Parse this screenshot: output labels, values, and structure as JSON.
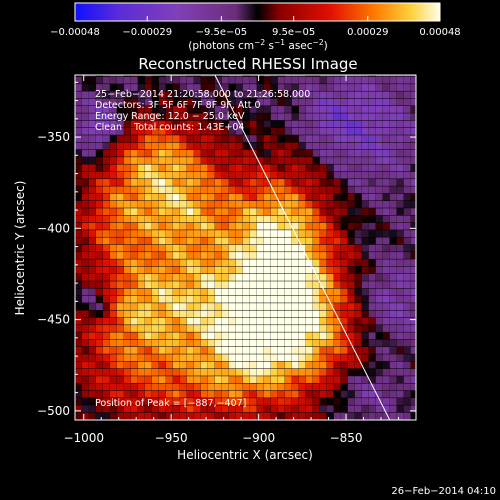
{
  "chart_data": {
    "type": "heatmap",
    "title": "Reconstructed RHESSI Image",
    "xlabel": "Heliocentric X (arcsec)",
    "ylabel": "Heliocentric Y (arcsec)",
    "xlim": [
      -1005,
      -810
    ],
    "ylim": [
      -505,
      -316
    ],
    "xticks": [
      -1000,
      -950,
      -900,
      -850
    ],
    "yticks": [
      -350,
      -400,
      -450,
      -500
    ],
    "colorbar": {
      "ticks": [
        -0.00048,
        -0.00029,
        -9.5e-05,
        9.5e-05,
        0.00029,
        0.00048
      ],
      "tick_labels": [
        "−0.00048",
        "−0.00029",
        "−9.5e−05",
        "9.5e−05",
        "0.00029",
        "0.00048"
      ],
      "range": [
        -0.00048,
        0.00048
      ],
      "units_prefix": "(photons cm",
      "units_exp1": "−2",
      "units_mid": " s",
      "units_exp2": "−1",
      "units_mid2": " asec",
      "units_exp3": "−2",
      "units_suffix": ")"
    },
    "annotations": [
      "25−Feb−2014 21:20:58.000 to 21:26:58.000",
      "Detectors: 3F 5F 6F 7F 8F 9F, Att 0",
      "Energy Range: 12.0 − 25.0 keV",
      "Clean    Total counts: 1.43E+04"
    ],
    "peak_label": "Position of Peak = [−887,−407]",
    "peak": [
      -887,
      -407
    ],
    "limb_line": [
      [
        -925,
        -316
      ],
      [
        -825,
        -505
      ]
    ],
    "blobs": [
      {
        "x": -887,
        "y": -407,
        "sx": 20,
        "sy": 27,
        "a": 1.0
      },
      {
        "x": -945,
        "y": -390,
        "sx": 24,
        "sy": 22,
        "a": 0.78
      },
      {
        "x": -960,
        "y": -360,
        "sx": 20,
        "sy": 16,
        "a": 0.55
      },
      {
        "x": -925,
        "y": -440,
        "sx": 38,
        "sy": 20,
        "a": 0.72
      },
      {
        "x": -975,
        "y": -450,
        "sx": 22,
        "sy": 24,
        "a": 0.5
      },
      {
        "x": -935,
        "y": -485,
        "sx": 40,
        "sy": 18,
        "a": 0.5
      },
      {
        "x": -865,
        "y": -455,
        "sx": 20,
        "sy": 25,
        "a": 0.55
      },
      {
        "x": -900,
        "y": -465,
        "sx": 22,
        "sy": 20,
        "a": 0.6
      },
      {
        "x": -985,
        "y": -395,
        "sx": 14,
        "sy": 18,
        "a": 0.4
      },
      {
        "x": -990,
        "y": -345,
        "sx": 9,
        "sy": 10,
        "a": -0.55
      },
      {
        "x": -993,
        "y": -440,
        "sx": 8,
        "sy": 9,
        "a": -0.5
      },
      {
        "x": -835,
        "y": -345,
        "sx": 18,
        "sy": 22,
        "a": -0.35
      },
      {
        "x": -825,
        "y": -440,
        "sx": 16,
        "sy": 16,
        "a": -0.35
      },
      {
        "x": -860,
        "y": -340,
        "sx": 12,
        "sy": 12,
        "a": -0.3
      },
      {
        "x": -840,
        "y": -490,
        "sx": 14,
        "sy": 10,
        "a": -0.3
      }
    ],
    "background_level": -0.08
  },
  "timestamp": "26−Feb−2014 04:10"
}
